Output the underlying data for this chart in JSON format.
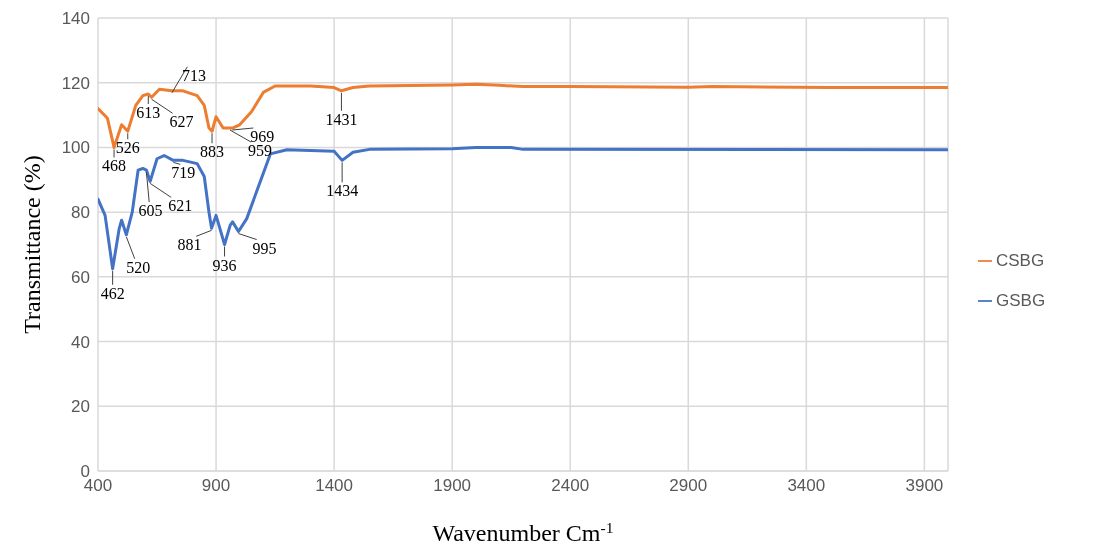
{
  "chart_data": {
    "type": "line",
    "xlabel": "Wavenumber Cm$^{-1}$",
    "ylabel": "Transmittance (%)",
    "xlim": [
      400,
      4000
    ],
    "xticks": [
      400,
      900,
      1400,
      1900,
      2400,
      2900,
      3400,
      3900
    ],
    "ylim": [
      0,
      140
    ],
    "yticks": [
      0,
      20,
      40,
      60,
      80,
      100,
      120,
      140
    ],
    "grid": true,
    "legend": "right",
    "marker": "none",
    "line_style": "solid",
    "series": [
      {
        "name": "CSBG",
        "color": "#ed7d31",
        "x": [
          400,
          440,
          468,
          500,
          526,
          560,
          590,
          613,
          627,
          660,
          713,
          760,
          820,
          850,
          870,
          883,
          900,
          930,
          959,
          969,
          1000,
          1050,
          1100,
          1150,
          1200,
          1300,
          1400,
          1431,
          1480,
          1550,
          1900,
          2000,
          2100,
          2200,
          2400,
          2900,
          3000,
          3500,
          4000
        ],
        "values": [
          112,
          109,
          100,
          107,
          105,
          113,
          116,
          116.5,
          115.5,
          118,
          117.5,
          117.5,
          116,
          113,
          106,
          105,
          109.5,
          106,
          106,
          106,
          107,
          111,
          117,
          119,
          119,
          119,
          118.5,
          117.5,
          118.5,
          119,
          119.3,
          119.5,
          119.2,
          118.8,
          118.8,
          118.6,
          118.8,
          118.5,
          118.5
        ]
      },
      {
        "name": "GSBG",
        "color": "#4472c4",
        "x": [
          400,
          430,
          462,
          490,
          500,
          520,
          545,
          570,
          590,
          605,
          621,
          650,
          680,
          719,
          760,
          820,
          850,
          870,
          881,
          900,
          936,
          960,
          970,
          995,
          1030,
          1080,
          1130,
          1200,
          1400,
          1434,
          1480,
          1550,
          1900,
          2000,
          2150,
          2200,
          4000
        ],
        "values": [
          84,
          79,
          62.5,
          75,
          77.5,
          73,
          80,
          93,
          93.5,
          93,
          89.5,
          96.5,
          97.5,
          96,
          96,
          95,
          91,
          80,
          75,
          79,
          70,
          76,
          77,
          74,
          78,
          88,
          98,
          99.3,
          98.8,
          96,
          98.5,
          99.4,
          99.6,
          100,
          100,
          99.4,
          99.3
        ]
      }
    ],
    "annotations": [
      {
        "text": "468",
        "x": 468,
        "y": 100
      },
      {
        "text": "526",
        "x": 526,
        "y": 105
      },
      {
        "text": "613",
        "x": 613,
        "y": 116.5
      },
      {
        "text": "627",
        "x": 627,
        "y": 115.5
      },
      {
        "text": "713",
        "x": 713,
        "y": 117.5
      },
      {
        "text": "883",
        "x": 883,
        "y": 105
      },
      {
        "text": "959",
        "x": 959,
        "y": 106
      },
      {
        "text": "969",
        "x": 969,
        "y": 106
      },
      {
        "text": "1431",
        "x": 1431,
        "y": 117.5
      },
      {
        "text": "462",
        "x": 462,
        "y": 62.5
      },
      {
        "text": "520",
        "x": 520,
        "y": 73
      },
      {
        "text": "605",
        "x": 605,
        "y": 93
      },
      {
        "text": "621",
        "x": 621,
        "y": 89.5
      },
      {
        "text": "719",
        "x": 719,
        "y": 96
      },
      {
        "text": "881",
        "x": 881,
        "y": 75
      },
      {
        "text": "936",
        "x": 936,
        "y": 70
      },
      {
        "text": "995",
        "x": 995,
        "y": 74
      },
      {
        "text": "1434",
        "x": 1434,
        "y": 96
      }
    ]
  }
}
